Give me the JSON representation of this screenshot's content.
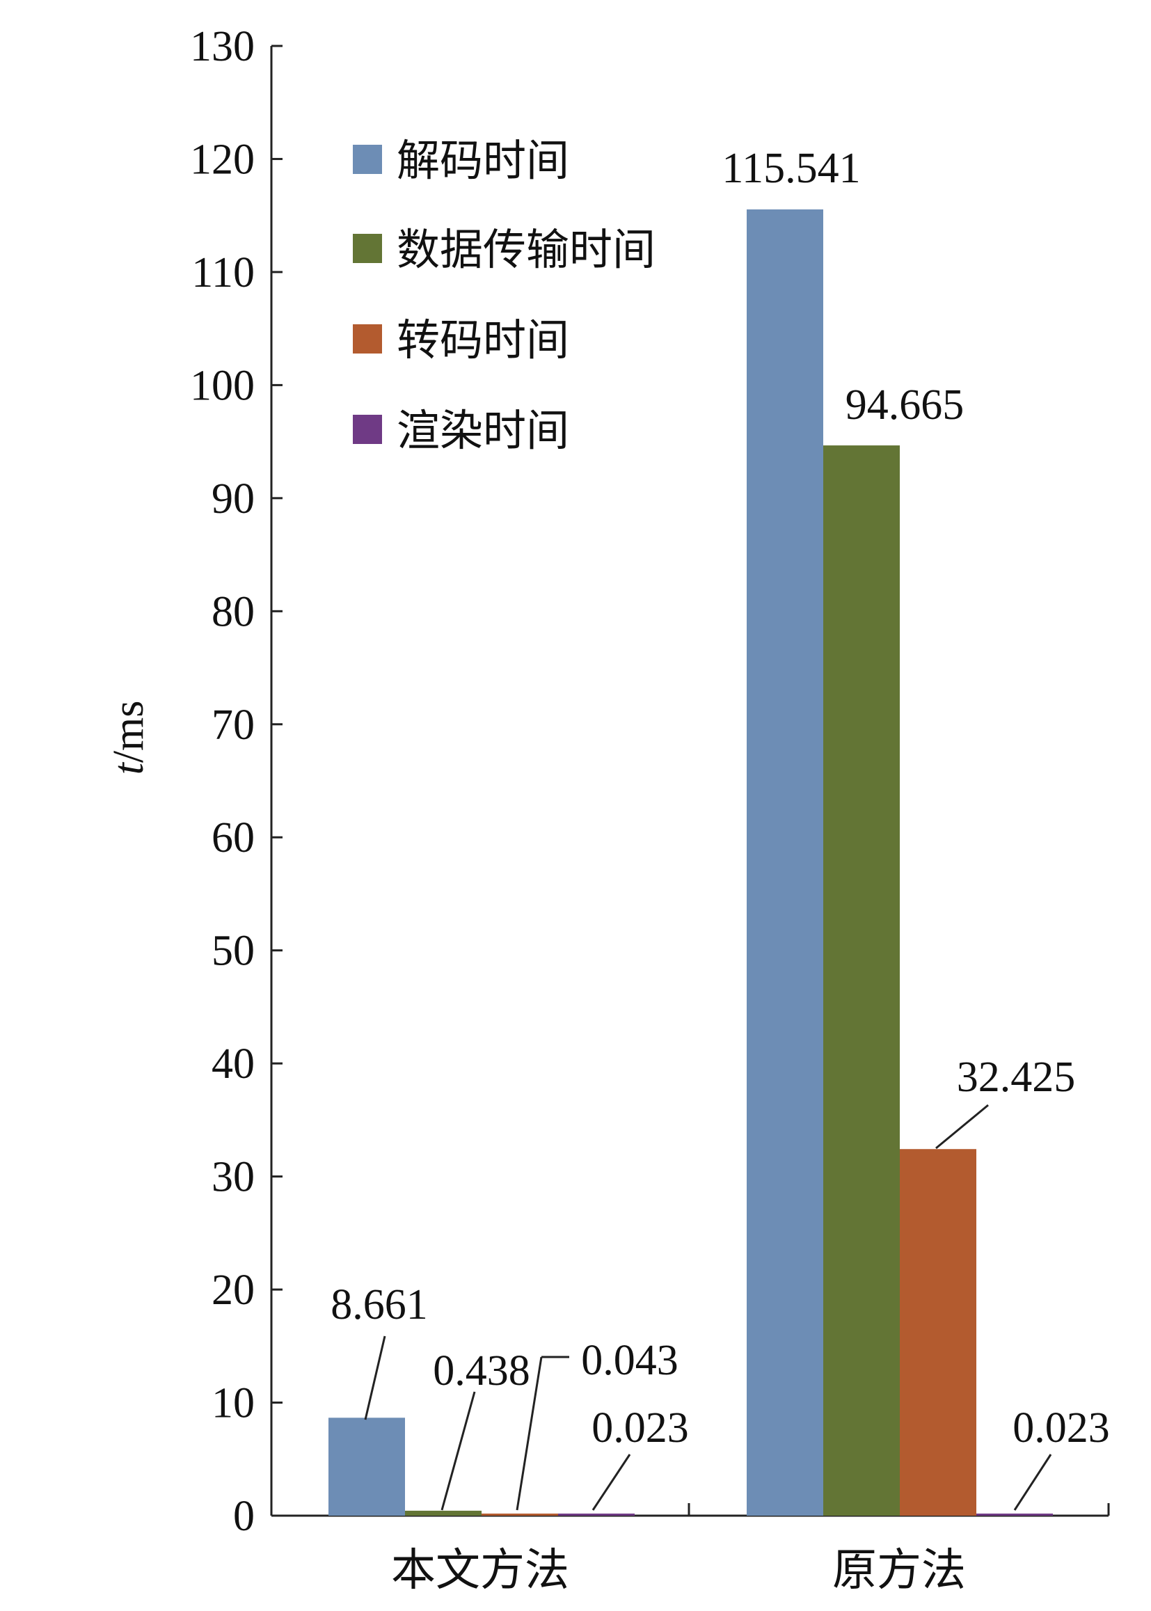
{
  "chart_data": {
    "type": "bar",
    "categories": [
      "本文方法",
      "原方法"
    ],
    "series": [
      {
        "name": "解码时间",
        "color": "#6d8db5",
        "values": [
          8.661,
          115.541
        ]
      },
      {
        "name": "数据传输时间",
        "color": "#637535",
        "values": [
          0.438,
          94.665
        ]
      },
      {
        "name": "转码时间",
        "color": "#b35b2f",
        "values": [
          0.043,
          32.425
        ]
      },
      {
        "name": "渲染时间",
        "color": "#6f3a85",
        "values": [
          0.023,
          0.023
        ]
      }
    ],
    "ylabel_italic": "t",
    "ylabel_unit": "/ms",
    "ylim": [
      0,
      130
    ],
    "yticks": [
      "0",
      "10",
      "20",
      "30",
      "40",
      "50",
      "60",
      "70",
      "80",
      "90",
      "100",
      "110",
      "120",
      "130"
    ],
    "data_labels": [
      [
        "8.661",
        "115.541"
      ],
      [
        "0.438",
        "94.665"
      ],
      [
        "0.043",
        "32.425"
      ],
      [
        "0.023",
        "0.023"
      ]
    ],
    "grid": false,
    "legend_position": "top-left"
  }
}
